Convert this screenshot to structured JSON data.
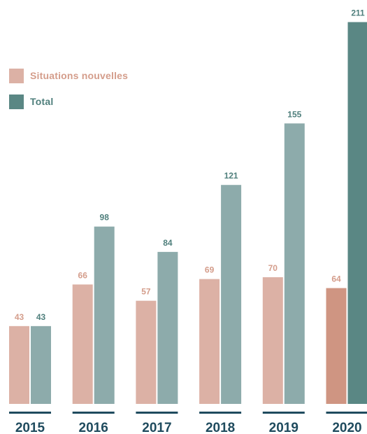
{
  "chart_data": {
    "type": "bar",
    "categories": [
      "2015",
      "2016",
      "2017",
      "2018",
      "2019",
      "2020"
    ],
    "series": [
      {
        "name": "Situations nouvelles",
        "values": [
          43,
          66,
          57,
          69,
          70,
          64
        ]
      },
      {
        "name": "Total",
        "values": [
          43,
          98,
          84,
          121,
          155,
          211
        ]
      }
    ],
    "legend_position": "top-left",
    "highlighted_category": "2020",
    "colors": {
      "situations": "#dcb1a5",
      "situations_highlight": "#cf9582",
      "total": "#8dabab",
      "total_highlight": "#5a8784",
      "situations_label": "#d49d8b",
      "total_label": "#4f7f7c",
      "axis": "#1f4b5e"
    }
  }
}
